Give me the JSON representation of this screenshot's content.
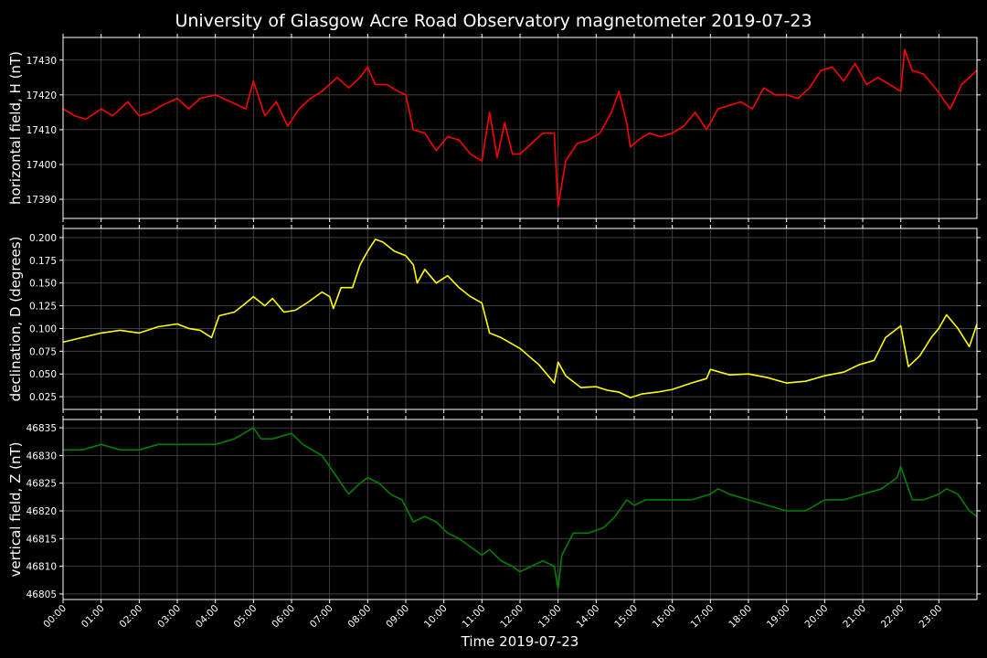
{
  "title": "University of Glasgow Acre Road Observatory magnetometer 2019-07-23",
  "xlabel": "Time 2019-07-23",
  "colors": {
    "background": "#000000",
    "grid": "#4a4a4a",
    "text": "#ffffff"
  },
  "x_ticks": [
    "00:00",
    "01:00",
    "02:00",
    "03:00",
    "04:00",
    "05:00",
    "06:00",
    "07:00",
    "08:00",
    "09:00",
    "10:00",
    "11:00",
    "12:00",
    "13:00",
    "14:00",
    "15:00",
    "16:00",
    "17:00",
    "18:00",
    "19:00",
    "20:00",
    "21:00",
    "22:00",
    "23:00"
  ],
  "chart_data": [
    {
      "type": "line",
      "ylabel": "horizontal field, H (nT)",
      "color": "#ff0000",
      "xlim": [
        0,
        24
      ],
      "ylim": [
        17384.5,
        17436.5
      ],
      "y_ticks": [
        17390,
        17400,
        17410,
        17420,
        17430
      ],
      "grid": true,
      "series": [
        {
          "x": [
            0,
            0.3,
            0.6,
            1.0,
            1.3,
            1.7,
            2.0,
            2.3,
            2.6,
            3.0,
            3.3,
            3.6,
            4.0,
            4.4,
            4.8,
            5.0,
            5.3,
            5.6,
            5.9,
            6.2,
            6.5,
            6.8,
            7.0,
            7.2,
            7.5,
            7.8,
            8.0,
            8.2,
            8.5,
            8.8,
            9.0,
            9.2,
            9.5,
            9.8,
            10.1,
            10.4,
            10.7,
            11.0,
            11.2,
            11.4,
            11.6,
            11.8,
            12.0,
            12.3,
            12.6,
            12.9,
            13.0,
            13.2,
            13.5,
            13.8,
            14.1,
            14.4,
            14.6,
            14.8,
            14.9,
            15.1,
            15.4,
            15.7,
            16.0,
            16.3,
            16.6,
            16.9,
            17.2,
            17.5,
            17.8,
            18.1,
            18.4,
            18.7,
            19.0,
            19.3,
            19.6,
            19.9,
            20.2,
            20.5,
            20.8,
            21.1,
            21.4,
            21.7,
            22.0,
            22.1,
            22.3,
            22.6,
            22.9,
            23.1,
            23.3,
            23.6,
            24.0
          ],
          "y": [
            17416,
            17414,
            17413,
            17416,
            17414,
            17418,
            17414,
            17415,
            17417,
            17419,
            17416,
            17419,
            17420,
            17418,
            17416,
            17424,
            17414,
            17418,
            17411,
            17416,
            17419,
            17421,
            17423,
            17425,
            17422,
            17425,
            17428,
            17423,
            17423,
            17421,
            17420,
            17410,
            17409,
            17404,
            17408,
            17407,
            17403,
            17401,
            17415,
            17402,
            17412,
            17403,
            17403,
            17406,
            17409,
            17409,
            17388,
            17401,
            17406,
            17407,
            17409,
            17415,
            17421,
            17412,
            17405,
            17407,
            17409,
            17408,
            17409,
            17411,
            17415,
            17410,
            17416,
            17417,
            17418,
            17416,
            17422,
            17420,
            17420,
            17419,
            17422,
            17427,
            17428,
            17424,
            17429,
            17423,
            17425,
            17423,
            17421,
            17433,
            17427,
            17426,
            17422,
            17419,
            17416,
            17423,
            17427
          ]
        }
      ]
    },
    {
      "type": "line",
      "ylabel": "declination, D (degrees)",
      "color": "#ffff00",
      "xlim": [
        0,
        24
      ],
      "ylim": [
        0.011,
        0.21
      ],
      "y_ticks": [
        0.025,
        0.05,
        0.075,
        0.1,
        0.125,
        0.15,
        0.175,
        0.2
      ],
      "tick_decimals": 3,
      "grid": true,
      "series": [
        {
          "x": [
            0,
            0.5,
            1.0,
            1.5,
            2.0,
            2.5,
            3.0,
            3.3,
            3.6,
            3.9,
            4.1,
            4.5,
            4.8,
            5.0,
            5.3,
            5.5,
            5.8,
            6.1,
            6.4,
            6.8,
            7.0,
            7.1,
            7.3,
            7.6,
            7.8,
            8.0,
            8.2,
            8.4,
            8.7,
            9.0,
            9.2,
            9.3,
            9.5,
            9.8,
            10.1,
            10.4,
            10.7,
            11.0,
            11.2,
            11.5,
            12.0,
            12.5,
            12.9,
            13.0,
            13.2,
            13.6,
            14.0,
            14.3,
            14.6,
            14.9,
            15.2,
            15.6,
            16.0,
            16.5,
            16.9,
            17.0,
            17.5,
            18.0,
            18.5,
            19.0,
            19.5,
            20.0,
            20.5,
            20.9,
            21.3,
            21.6,
            22.0,
            22.1,
            22.2,
            22.5,
            22.8,
            23.0,
            23.2,
            23.5,
            23.8,
            24.0
          ],
          "y": [
            0.085,
            0.09,
            0.095,
            0.098,
            0.095,
            0.102,
            0.105,
            0.1,
            0.098,
            0.09,
            0.114,
            0.118,
            0.128,
            0.135,
            0.125,
            0.133,
            0.118,
            0.12,
            0.128,
            0.14,
            0.135,
            0.122,
            0.145,
            0.145,
            0.17,
            0.185,
            0.198,
            0.195,
            0.185,
            0.18,
            0.17,
            0.15,
            0.165,
            0.15,
            0.158,
            0.145,
            0.135,
            0.128,
            0.095,
            0.09,
            0.078,
            0.06,
            0.04,
            0.063,
            0.048,
            0.035,
            0.036,
            0.032,
            0.03,
            0.024,
            0.028,
            0.03,
            0.033,
            0.04,
            0.045,
            0.055,
            0.049,
            0.05,
            0.046,
            0.04,
            0.042,
            0.048,
            0.052,
            0.06,
            0.065,
            0.09,
            0.103,
            0.08,
            0.058,
            0.07,
            0.09,
            0.1,
            0.115,
            0.1,
            0.08,
            0.105
          ]
        }
      ]
    },
    {
      "type": "line",
      "ylabel": "vertical field, Z (nT)",
      "color": "#008000",
      "xlim": [
        0,
        24
      ],
      "ylim": [
        46804,
        46836.5
      ],
      "y_ticks": [
        46805,
        46810,
        46815,
        46820,
        46825,
        46830,
        46835
      ],
      "grid": true,
      "series": [
        {
          "x": [
            0,
            0.5,
            1.0,
            1.5,
            2.0,
            2.5,
            3.0,
            3.5,
            4.0,
            4.5,
            5.0,
            5.2,
            5.5,
            6.0,
            6.3,
            6.8,
            7.0,
            7.3,
            7.5,
            7.8,
            8.0,
            8.3,
            8.6,
            8.9,
            9.2,
            9.5,
            9.8,
            10.1,
            10.4,
            10.8,
            11.0,
            11.2,
            11.5,
            11.8,
            12.0,
            12.3,
            12.6,
            12.9,
            13.0,
            13.1,
            13.4,
            13.8,
            14.2,
            14.5,
            14.8,
            15.0,
            15.3,
            15.6,
            16.0,
            16.5,
            17.0,
            17.2,
            17.5,
            18.0,
            18.5,
            19.0,
            19.5,
            20.0,
            20.5,
            21.0,
            21.5,
            21.9,
            22.0,
            22.1,
            22.3,
            22.6,
            23.0,
            23.2,
            23.5,
            23.8,
            24.0
          ],
          "y": [
            46831,
            46831,
            46832,
            46831,
            46831,
            46832,
            46832,
            46832,
            46832,
            46833,
            46835,
            46833,
            46833,
            46834,
            46832,
            46830,
            46828,
            46825,
            46823,
            46825,
            46826,
            46825,
            46823,
            46822,
            46818,
            46819,
            46818,
            46816,
            46815,
            46813,
            46812,
            46813,
            46811,
            46810,
            46809,
            46810,
            46811,
            46810,
            46806,
            46812,
            46816,
            46816,
            46817,
            46819,
            46822,
            46821,
            46822,
            46822,
            46822,
            46822,
            46823,
            46824,
            46823,
            46822,
            46821,
            46820,
            46820,
            46822,
            46822,
            46823,
            46824,
            46826,
            46828,
            46826,
            46822,
            46822,
            46823,
            46824,
            46823,
            46820,
            46819
          ]
        }
      ]
    }
  ]
}
